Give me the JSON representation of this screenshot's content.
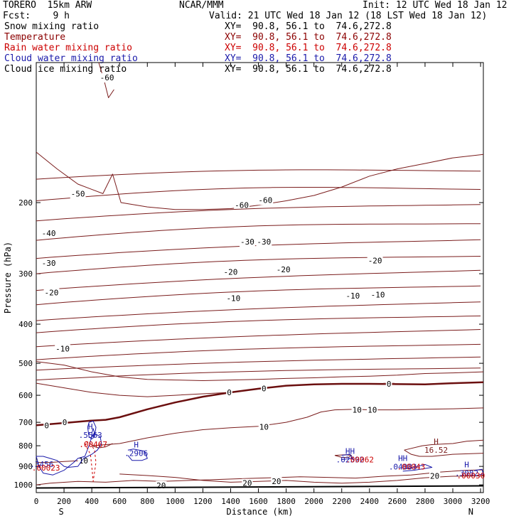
{
  "header": {
    "model": "TORERO  15km ARW",
    "center": "NCAR/MMM",
    "init": "Init: 12 UTC Wed 18 Jan 12",
    "fcst": "Fcst:    9 h",
    "valid": "Valid: 21 UTC Wed 18 Jan 12 (18 LST Wed 18 Jan 12)"
  },
  "fields": [
    {
      "name": "Snow mixing ratio",
      "xy": "XY=  90.8, 56.1 to  74.6,272.8",
      "color": "#000000"
    },
    {
      "name": "Temperature",
      "xy": "XY=  90.8, 56.1 to  74.6,272.8",
      "color": "#8b0000"
    },
    {
      "name": "Rain water mixing ratio",
      "xy": "XY=  90.8, 56.1 to  74.6,272.8",
      "color": "#cc0000"
    },
    {
      "name": "Cloud water mixing ratio",
      "xy": "XY=  90.8, 56.1 to  74.6,272.8",
      "color": "#1a1aaa"
    },
    {
      "name": "Cloud ice mixing ratio",
      "xy": "XY=  90.8, 56.1 to  74.6,272.8",
      "color": "#000000"
    }
  ],
  "chart_data": {
    "type": "line",
    "xlabel": "Distance (km)",
    "ylabel": "Pressure (hPa)",
    "xlim": [
      0,
      3220
    ],
    "ylim": [
      1045,
      90
    ],
    "y_scale": "log",
    "x_ticks": [
      0,
      200,
      400,
      600,
      800,
      1000,
      1200,
      1400,
      1600,
      1800,
      2000,
      2200,
      2400,
      2600,
      2800,
      3000,
      3200
    ],
    "y_ticks": [
      200,
      300,
      400,
      500,
      600,
      700,
      800,
      900,
      1000
    ],
    "x_end_labels": {
      "left": "S",
      "right": "N"
    },
    "temperature_contours": [
      {
        "level": -60,
        "labels": [
          "-60",
          "-60",
          "-60"
        ]
      },
      {
        "level": -50,
        "labels": [
          "-50"
        ]
      },
      {
        "level": -40,
        "labels": [
          "-40"
        ]
      },
      {
        "level": -30,
        "labels": [
          "-30",
          "-30",
          "-30"
        ]
      },
      {
        "level": -20,
        "labels": [
          "-20",
          "-20",
          "-20",
          "-20"
        ]
      },
      {
        "level": -10,
        "labels": [
          "-10",
          "-10",
          "-10",
          "-10"
        ]
      },
      {
        "level": 0,
        "labels": [
          "0",
          "0",
          "0",
          "0"
        ],
        "freezing": true
      },
      {
        "level": 10,
        "labels": [
          "10",
          "10",
          "10",
          "10"
        ]
      },
      {
        "level": 20,
        "labels": [
          "20",
          "20",
          "20",
          "20"
        ]
      }
    ],
    "extrema_labels": [
      {
        "mark": "H",
        "value": ".5563",
        "field": "Cloud water mixing ratio"
      },
      {
        "mark": "",
        "value": ".00467",
        "field": "Rain water mixing ratio"
      },
      {
        "mark": "H",
        "value": ".2906",
        "field": "Cloud water mixing ratio"
      },
      {
        "mark": "",
        "value": ".3456",
        "field": "Cloud water mixing ratio"
      },
      {
        "mark": "",
        "value": ".00023",
        "field": "Rain water mixing ratio"
      },
      {
        "mark": "HH",
        "value": ".02592",
        "field": "Cloud water mixing ratio"
      },
      {
        "mark": "",
        "value": ".00062",
        "field": "Rain water mixing ratio"
      },
      {
        "mark": "H",
        "value": "16.52",
        "field": "Temperature"
      },
      {
        "mark": "HH",
        "value": ".04083",
        "field": "Cloud water mixing ratio"
      },
      {
        "mark": "",
        "value": ".00043",
        "field": "Rain water mixing ratio"
      },
      {
        "mark": "H",
        "value": ".3082",
        "field": "Cloud water mixing ratio"
      },
      {
        "mark": "",
        "value": ".00030",
        "field": "Rain water mixing ratio"
      }
    ],
    "surface_line": {
      "pressure": 1018,
      "color": "#000000"
    }
  }
}
